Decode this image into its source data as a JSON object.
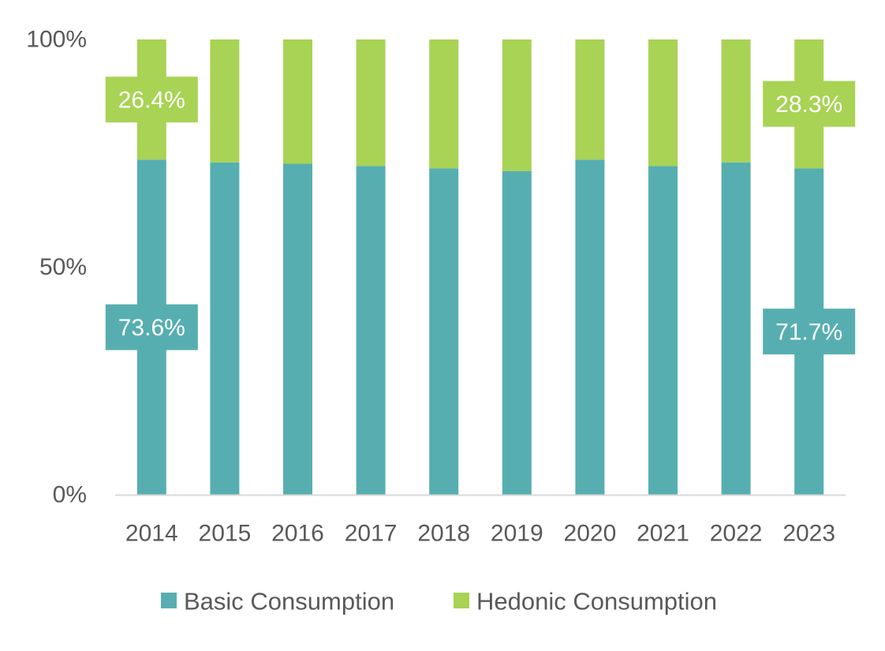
{
  "colors": {
    "basic": "#57AEB0",
    "hedonic": "#A8D355",
    "axis": "#D9D9D9",
    "text": "#595959"
  },
  "chart_data": {
    "type": "bar",
    "stacked": "percent",
    "title": "",
    "xlabel": "",
    "ylabel": "",
    "ylim": [
      0,
      100
    ],
    "y_ticks": [
      "0%",
      "50%",
      "100%"
    ],
    "y_tick_values": [
      0,
      50,
      100
    ],
    "categories": [
      "2014",
      "2015",
      "2016",
      "2017",
      "2018",
      "2019",
      "2020",
      "2021",
      "2022",
      "2023"
    ],
    "series": [
      {
        "name": "Basic Consumption",
        "color_key": "basic",
        "values": [
          73.6,
          73.0,
          72.7,
          72.2,
          71.7,
          71.1,
          73.6,
          72.2,
          73.0,
          71.7
        ]
      },
      {
        "name": "Hedonic Consumption",
        "color_key": "hedonic",
        "values": [
          26.4,
          27.0,
          27.3,
          27.8,
          28.3,
          28.9,
          26.4,
          27.8,
          27.0,
          28.3
        ]
      }
    ],
    "data_labels": [
      {
        "series": 0,
        "category": 0,
        "text": "73.6%"
      },
      {
        "series": 1,
        "category": 0,
        "text": "26.4%"
      },
      {
        "series": 0,
        "category": 9,
        "text": "71.7%"
      },
      {
        "series": 1,
        "category": 9,
        "text": "28.3%"
      }
    ],
    "legend": {
      "position": "bottom",
      "items": [
        "Basic Consumption",
        "Hedonic Consumption"
      ]
    },
    "grid": false
  }
}
